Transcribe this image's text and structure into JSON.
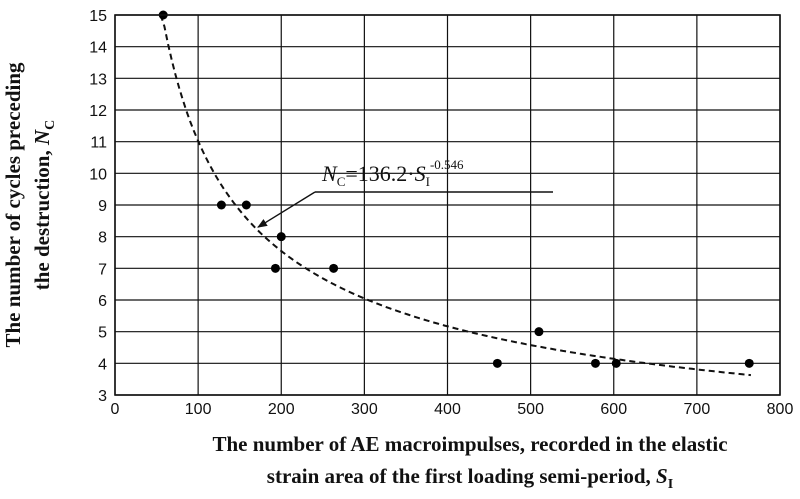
{
  "chart_data": {
    "type": "scatter",
    "xlabel": {
      "line1": "The number of AE macroimpulses, recorded in the elastic",
      "line2_prefix": "strain area of the first loading semi-period, ",
      "var": "S",
      "sub": "I"
    },
    "ylabel": {
      "line1": "The number of cycles preceding",
      "line2_prefix": "the destruction, ",
      "var": "N",
      "sub": "C"
    },
    "xlim": [
      0,
      800
    ],
    "ylim": [
      3,
      15
    ],
    "xticks": [
      "0",
      "100",
      "200",
      "300",
      "400",
      "500",
      "600",
      "700",
      "800"
    ],
    "yticks": [
      "3",
      "4",
      "5",
      "6",
      "7",
      "8",
      "9",
      "10",
      "11",
      "12",
      "13",
      "14",
      "15"
    ],
    "grid": true,
    "points": [
      {
        "x": 58,
        "y": 15
      },
      {
        "x": 128,
        "y": 9
      },
      {
        "x": 158,
        "y": 9
      },
      {
        "x": 193,
        "y": 7
      },
      {
        "x": 200,
        "y": 8
      },
      {
        "x": 263,
        "y": 7
      },
      {
        "x": 460,
        "y": 4
      },
      {
        "x": 510,
        "y": 5
      },
      {
        "x": 578,
        "y": 4
      },
      {
        "x": 603,
        "y": 4
      },
      {
        "x": 763,
        "y": 4
      }
    ],
    "fit": {
      "coef": 136.2,
      "exponent": -0.546,
      "x_range": [
        55,
        765
      ]
    },
    "annotation": {
      "lhs_var": "N",
      "lhs_sub": "C",
      "eq_text": "=136.2·",
      "rhs_var": "S",
      "rhs_sub": "I",
      "rhs_exp": "-0.546",
      "arrow_target": {
        "x": 172,
        "y": 8.3
      }
    }
  }
}
